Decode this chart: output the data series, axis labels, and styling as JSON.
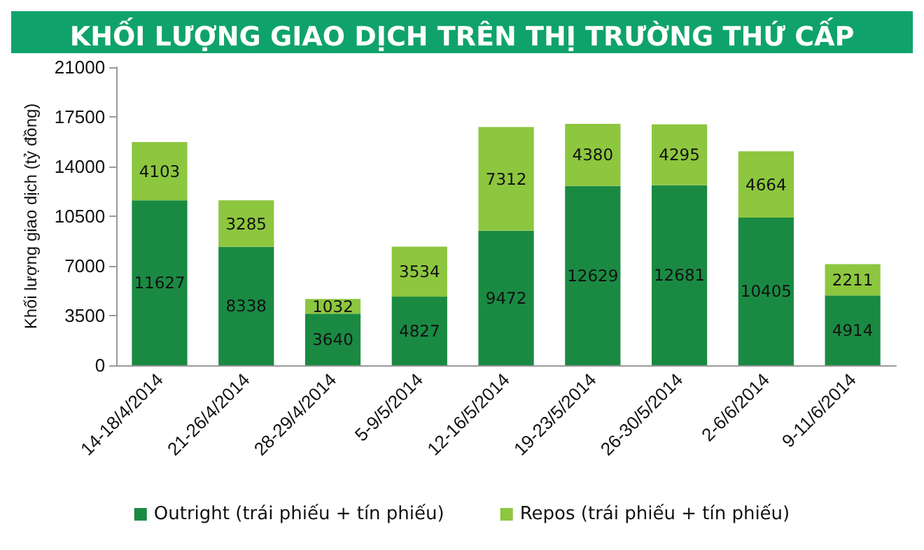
{
  "chart_data": {
    "type": "bar",
    "title": "KHỐI LƯỢNG GIAO DỊCH TRÊN THỊ TRƯỜNG THỨ CẤP",
    "ylabel": "Khối lượng giao dịch (tỷ đồng)",
    "categories": [
      "14-18/4/2014",
      "21-26/4/2014",
      "28-29/4/2014",
      "5-9/5/2014",
      "12-16/5/2014",
      "19-23/5/2014",
      "26-30/5/2014",
      "2-6/6/2014",
      "9-11/6/2014"
    ],
    "series": [
      {
        "name": "Outright (trái phiếu + tín phiếu)",
        "color": "#1a8a43",
        "values": [
          11627,
          8338,
          3640,
          4827,
          9472,
          12629,
          12681,
          10405,
          4914
        ]
      },
      {
        "name": "Repos (trái phiếu + tín phiếu)",
        "color": "#8dc63f",
        "values": [
          4103,
          3285,
          1032,
          3534,
          7312,
          4380,
          4295,
          4664,
          2211
        ]
      }
    ],
    "stacked": true,
    "data_labels": true,
    "ylim": [
      0,
      21000
    ],
    "yticks": [
      0,
      3500,
      7000,
      10500,
      14000,
      17500,
      21000
    ],
    "grid": false,
    "legend": "bottom"
  }
}
